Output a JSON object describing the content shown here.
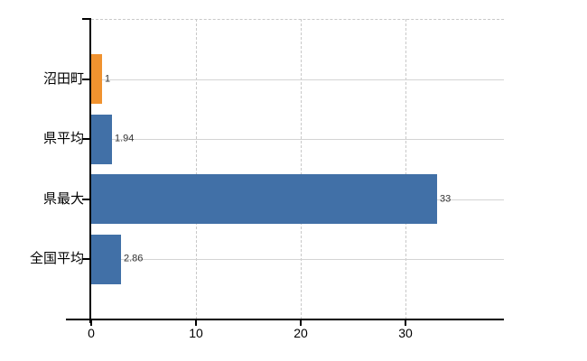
{
  "chart_data": {
    "type": "bar",
    "orientation": "horizontal",
    "title": "",
    "legend": "none",
    "categories": [
      "沼田町",
      "県平均",
      "県最大",
      "全国平均"
    ],
    "series": [
      {
        "name": "values",
        "values": [
          1,
          1.94,
          33,
          2.86
        ],
        "value_labels": [
          "1",
          "1.94",
          "33",
          "2.86"
        ]
      }
    ],
    "highlight_category": "沼田町",
    "x_axis": {
      "ticks": [
        "0",
        "10",
        "20",
        "30"
      ],
      "tick_values": [
        0,
        10,
        20,
        30
      ],
      "range": [
        0,
        39.4
      ],
      "gridlines": "dashed"
    },
    "y_axis": {
      "gridlines": "solid",
      "top_boundary_line": "dashed"
    },
    "colors": {
      "highlight_bar": "#f0922f",
      "default_bar": "#4170a7",
      "axis": "#000000",
      "grid_solid": "#d4d4d4",
      "grid_dashed": "#c9c9c9",
      "category_text": "#000000",
      "value_text": "#333333",
      "tick_text": "#000000",
      "background": "#ffffff"
    }
  }
}
